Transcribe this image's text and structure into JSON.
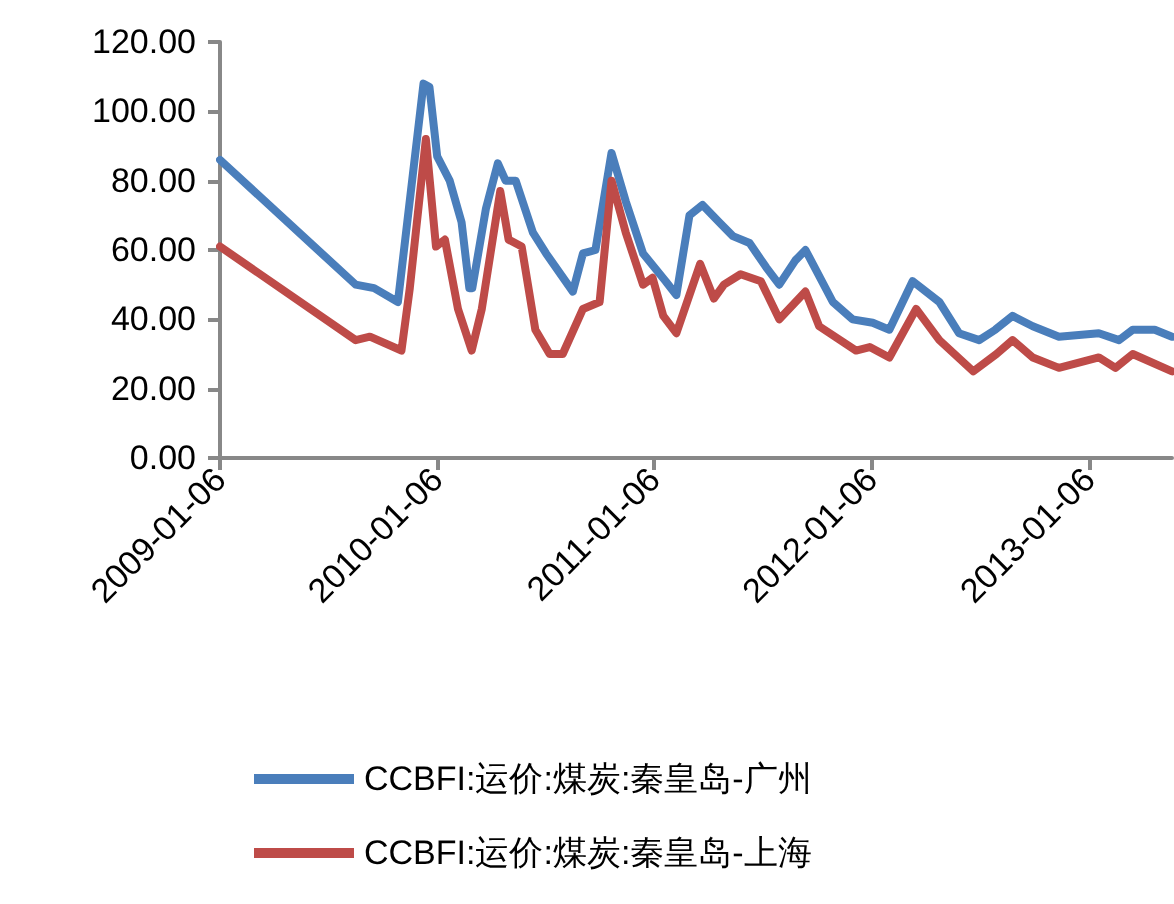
{
  "chart_data": {
    "type": "line",
    "xlim": [
      "2009-01-06",
      "2013-05-25"
    ],
    "xticks": [
      "2009-01-06",
      "2010-01-06",
      "2011-01-06",
      "2012-01-06",
      "2013-01-06"
    ],
    "ylim": [
      0,
      120
    ],
    "yticks": [
      {
        "value": 0,
        "label": "0.00"
      },
      {
        "value": 20,
        "label": "20.00"
      },
      {
        "value": 40,
        "label": "40.00"
      },
      {
        "value": 60,
        "label": "60.00"
      },
      {
        "value": 80,
        "label": "80.00"
      },
      {
        "value": 100,
        "label": "100.00"
      },
      {
        "value": 120,
        "label": "120.00"
      }
    ],
    "grid": false,
    "legend": "bottom",
    "marker": "none",
    "line_style": "solid",
    "series": [
      {
        "name": "CCBFI:运价:煤炭:秦皇岛-广州",
        "color": "#4a7ebb",
        "x": [
          "2009-01-06",
          "2009-08-22",
          "2009-09-22",
          "2009-11-01",
          "2009-12-14",
          "2009-12-24",
          "2010-01-06",
          "2010-01-27",
          "2010-02-16",
          "2010-03-01",
          "2010-03-06",
          "2010-03-29",
          "2010-04-18",
          "2010-05-01",
          "2010-05-18",
          "2010-06-16",
          "2010-07-08",
          "2010-08-22",
          "2010-09-08",
          "2010-09-29",
          "2010-10-26",
          "2010-11-19",
          "2010-12-18",
          "2011-01-25",
          "2011-02-12",
          "2011-03-06",
          "2011-03-28",
          "2011-04-25",
          "2011-05-18",
          "2011-06-15",
          "2011-07-13",
          "2011-08-04",
          "2011-08-31",
          "2011-09-17",
          "2011-11-02",
          "2011-12-05",
          "2012-01-08",
          "2012-02-05",
          "2012-03-15",
          "2012-04-29",
          "2012-06-01",
          "2012-07-05",
          "2012-08-01",
          "2012-08-30",
          "2012-10-03",
          "2012-11-16",
          "2013-01-22",
          "2013-02-25",
          "2013-03-20",
          "2013-04-26",
          "2013-05-25"
        ],
        "values": [
          86,
          50,
          49,
          45,
          108,
          107,
          87,
          80,
          68,
          49,
          49,
          72,
          85,
          80,
          80,
          65,
          59,
          48,
          59,
          60,
          88,
          74,
          59,
          51,
          47,
          70,
          73,
          68,
          64,
          62,
          55,
          50,
          57,
          60,
          45,
          40,
          39,
          37,
          51,
          45,
          36,
          34,
          37,
          41,
          38,
          35,
          36,
          34,
          37,
          37,
          35
        ]
      },
      {
        "name": "CCBFI:运价:煤炭:秦皇岛-上海",
        "color": "#be4b48",
        "x": [
          "2009-01-06",
          "2009-08-22",
          "2009-09-15",
          "2009-11-07",
          "2009-11-21",
          "2009-12-18",
          "2010-01-04",
          "2010-01-19",
          "2010-02-10",
          "2010-03-05",
          "2010-03-22",
          "2010-04-22",
          "2010-05-06",
          "2010-05-28",
          "2010-06-20",
          "2010-07-14",
          "2010-08-05",
          "2010-09-08",
          "2010-10-06",
          "2010-10-26",
          "2010-11-19",
          "2010-12-18",
          "2011-01-03",
          "2011-01-21",
          "2011-02-12",
          "2011-03-24",
          "2011-04-16",
          "2011-05-03",
          "2011-05-31",
          "2011-07-04",
          "2011-08-04",
          "2011-09-17",
          "2011-10-10",
          "2011-12-11",
          "2012-01-03",
          "2012-02-05",
          "2012-03-21",
          "2012-04-29",
          "2012-06-25",
          "2012-08-03",
          "2012-08-30",
          "2012-10-03",
          "2012-11-16",
          "2013-01-22",
          "2013-02-19",
          "2013-03-20",
          "2013-05-25"
        ],
        "values": [
          61,
          34,
          35,
          31,
          49,
          92,
          61,
          63,
          43,
          31,
          43,
          77,
          63,
          61,
          37,
          30,
          30,
          43,
          45,
          80,
          65,
          50,
          52,
          41,
          36,
          56,
          46,
          50,
          53,
          51,
          40,
          48,
          38,
          31,
          32,
          29,
          43,
          34,
          25,
          30,
          34,
          29,
          26,
          29,
          26,
          30,
          25
        ]
      }
    ]
  }
}
